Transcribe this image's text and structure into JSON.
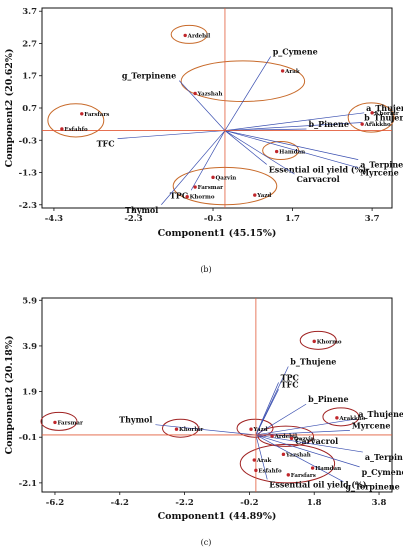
{
  "chart_data": [
    {
      "type": "scatter",
      "subtype": "pca-biplot",
      "caption": "(b)",
      "xlabel": "Component1 (45.15%)",
      "ylabel": "Component2 (20.62%)",
      "xlim": [
        -4.6,
        4.2
      ],
      "ylim": [
        -2.4,
        3.8
      ],
      "xticks": [
        "-4.3",
        "-2.3",
        "-0.3",
        "1.7",
        "3.7"
      ],
      "xtick_values": [
        -4.3,
        -2.3,
        -0.3,
        1.7,
        3.7
      ],
      "yticks": [
        "3.7",
        "2.7",
        "1.7",
        "0.7",
        "-0.3",
        "-1.3",
        "-2.3"
      ],
      "ytick_values": [
        3.7,
        2.7,
        1.7,
        0.7,
        -0.3,
        -1.3,
        -2.3
      ],
      "origin": [
        0.0,
        0.0
      ],
      "points": [
        {
          "name": "Ardebil",
          "x": -1.0,
          "y": 2.95
        },
        {
          "name": "Arak",
          "x": 1.45,
          "y": 1.85
        },
        {
          "name": "Yazshah",
          "x": -0.75,
          "y": 1.15
        },
        {
          "name": "Farsfars",
          "x": -3.6,
          "y": 0.52
        },
        {
          "name": "Esfahfo",
          "x": -4.1,
          "y": 0.05
        },
        {
          "name": "Khorbir",
          "x": 3.7,
          "y": 0.55
        },
        {
          "name": "Arakkho",
          "x": 3.45,
          "y": 0.2
        },
        {
          "name": "Hamdan",
          "x": 1.3,
          "y": -0.65
        },
        {
          "name": "Qazvin",
          "x": -0.3,
          "y": -1.45
        },
        {
          "name": "Farsmar",
          "x": -0.75,
          "y": -1.75
        },
        {
          "name": "Khormo",
          "x": -0.95,
          "y": -2.05
        },
        {
          "name": "Yazd",
          "x": 0.75,
          "y": -2.0
        }
      ],
      "vectors": [
        {
          "name": "p_Cymene",
          "x": 1.15,
          "y": 2.3
        },
        {
          "name": "g_Terpinene",
          "x": -1.15,
          "y": 1.55
        },
        {
          "name": "a_Thujene",
          "x": 3.5,
          "y": 0.55
        },
        {
          "name": "b_Thujene",
          "x": 3.45,
          "y": 0.25
        },
        {
          "name": "b_Pinene",
          "x": 2.05,
          "y": 0.05
        },
        {
          "name": "TFC",
          "x": -2.7,
          "y": -0.25
        },
        {
          "name": "Essential oil yield (%)",
          "x": 1.05,
          "y": -1.05
        },
        {
          "name": "a_Terpinene",
          "x": 3.35,
          "y": -0.9
        },
        {
          "name": "Myrcene",
          "x": 3.35,
          "y": -1.15
        },
        {
          "name": "Carvacrol",
          "x": 1.75,
          "y": -1.35
        },
        {
          "name": "TPC",
          "x": -0.85,
          "y": -1.85
        },
        {
          "name": "Thymol",
          "x": -1.6,
          "y": -2.3
        }
      ],
      "groups": [
        [
          "Ardebil"
        ],
        [
          "Arak",
          "Yazshah"
        ],
        [
          "Farsfars",
          "Esfahfo"
        ],
        [
          "Khorbir",
          "Arakkho"
        ],
        [
          "Hamdan"
        ],
        [
          "Qazvin",
          "Farsmar",
          "Khormo",
          "Yazd"
        ]
      ]
    },
    {
      "type": "scatter",
      "subtype": "pca-biplot",
      "caption": "(c)",
      "xlabel": "Component1 (44.89%)",
      "ylabel": "Component2 (20.18%)",
      "xlim": [
        -6.6,
        4.2
      ],
      "ylim": [
        -2.5,
        6.0
      ],
      "xticks": [
        "-6.2",
        "-4.2",
        "-2.2",
        "-0.2",
        "1.8",
        "3.8"
      ],
      "xtick_values": [
        -6.2,
        -4.2,
        -2.2,
        -0.2,
        1.8,
        3.8
      ],
      "yticks": [
        "5.9",
        "3.9",
        "1.9",
        "-0.1",
        "-2.1"
      ],
      "ytick_values": [
        5.9,
        3.9,
        1.9,
        -0.1,
        -2.1
      ],
      "origin": [
        0.0,
        0.0
      ],
      "points": [
        {
          "name": "Khormo",
          "x": 1.8,
          "y": 4.1
        },
        {
          "name": "Farsmar",
          "x": -6.2,
          "y": 0.55
        },
        {
          "name": "Khorbir",
          "x": -2.45,
          "y": 0.25
        },
        {
          "name": "Yazd",
          "x": -0.15,
          "y": 0.25
        },
        {
          "name": "Arakkho",
          "x": 2.5,
          "y": 0.75
        },
        {
          "name": "Ardebil",
          "x": 0.5,
          "y": -0.05
        },
        {
          "name": "Qazvin",
          "x": 1.1,
          "y": -0.15
        },
        {
          "name": "Yazshah",
          "x": 0.85,
          "y": -0.85
        },
        {
          "name": "Arak",
          "x": -0.05,
          "y": -1.1
        },
        {
          "name": "Esfahfo",
          "x": 0.0,
          "y": -1.55
        },
        {
          "name": "Hamdan",
          "x": 1.75,
          "y": -1.45
        },
        {
          "name": "Farsfars",
          "x": 1.0,
          "y": -1.75
        }
      ],
      "vectors": [
        {
          "name": "b_Thujene",
          "x": 1.0,
          "y": 3.0
        },
        {
          "name": "TPC",
          "x": 0.7,
          "y": 2.3
        },
        {
          "name": "TFC",
          "x": 0.7,
          "y": 2.0
        },
        {
          "name": "b_Pinene",
          "x": 1.55,
          "y": 1.35
        },
        {
          "name": "a_Thujene",
          "x": 3.1,
          "y": 0.7
        },
        {
          "name": "Myrcene",
          "x": 2.9,
          "y": 0.2
        },
        {
          "name": "Carvacrol",
          "x": 1.15,
          "y": -0.05
        },
        {
          "name": "Thymol",
          "x": -3.1,
          "y": 0.45
        },
        {
          "name": "a_Terpinene",
          "x": 3.3,
          "y": -0.75
        },
        {
          "name": "p_Cymene",
          "x": 3.2,
          "y": -1.4
        },
        {
          "name": "g_Terpinene",
          "x": 2.7,
          "y": -2.05
        },
        {
          "name": "Essential oil yield (%)",
          "x": 0.35,
          "y": -1.95
        }
      ],
      "groups": [
        [
          "Khormo"
        ],
        [
          "Farsmar"
        ],
        [
          "Khorbir"
        ],
        [
          "Yazd"
        ],
        [
          "Arakkho"
        ],
        [
          "Ardebil",
          "Qazvin"
        ],
        [
          "Yazshah",
          "Arak",
          "Esfahfo",
          "Hamdan",
          "Farsfars"
        ]
      ]
    }
  ]
}
